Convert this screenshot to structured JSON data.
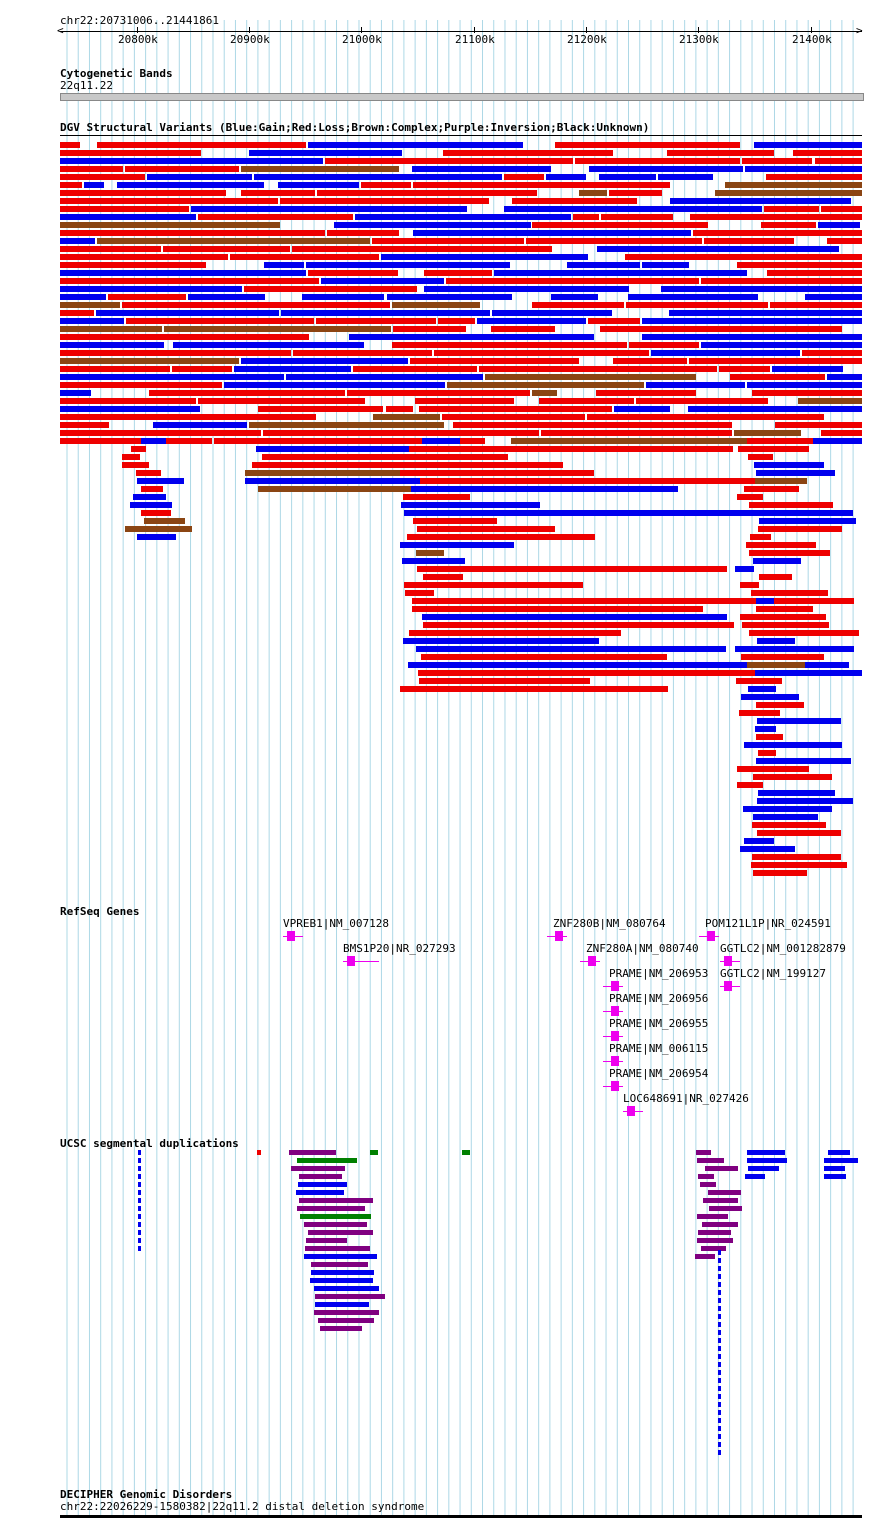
{
  "ruler": {
    "region": "chr22:20731006..21441861",
    "ticks": [
      "20800k",
      "20900k",
      "21000k",
      "21100k",
      "21200k",
      "21300k",
      "21400k"
    ]
  },
  "tracks": {
    "cytoband": {
      "title": "Cytogenetic Bands",
      "band": "22q11.22"
    },
    "dgv": {
      "title": "DGV Structural Variants (Blue:Gain;Red:Loss;Brown:Complex;Purple:Inversion;Black:Unknown)"
    },
    "refseq": {
      "title": "RefSeq Genes"
    },
    "segdup": {
      "title": "UCSC segmental duplications"
    },
    "decipher": {
      "title": "DECIPHER Genomic Disorders",
      "entry": "chr22:22026229-1580382|22q11.2 distal deletion syndrome"
    }
  },
  "genes": [
    {
      "label": "VPREB1|NM_007128",
      "strand": "+"
    },
    {
      "label": "BMS1P20|NR_027293",
      "strand": "+"
    },
    {
      "label": "ZNF280B|NM_080764",
      "strand": "-"
    },
    {
      "label": "ZNF280A|NM_080740",
      "strand": "-"
    },
    {
      "label": "POM121L1P|NR_024591",
      "strand": "-"
    },
    {
      "label": "GGTLC2|NM_001282879",
      "strand": "+"
    },
    {
      "label": "GGTLC2|NM_199127",
      "strand": "+"
    },
    {
      "label": "PRAME|NM_206953",
      "strand": "-"
    },
    {
      "label": "PRAME|NM_206956",
      "strand": "-"
    },
    {
      "label": "PRAME|NM_206955",
      "strand": "-"
    },
    {
      "label": "PRAME|NM_006115",
      "strand": "-"
    },
    {
      "label": "PRAME|NM_206954",
      "strand": "-"
    },
    {
      "label": "LOC648691|NR_027426",
      "strand": "+"
    }
  ],
  "colors": {
    "gain": "#0000ee",
    "loss": "#ee0000",
    "complex": "#8b4513",
    "inversion": "#800080",
    "unknown": "#000000",
    "gene": "#ee00ee",
    "grid": "#add8e6",
    "segdup_green": "#008000"
  }
}
